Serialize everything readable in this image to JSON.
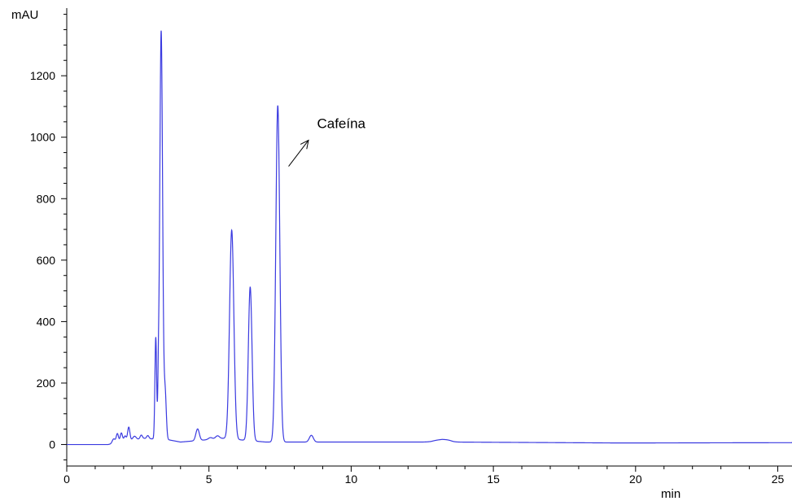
{
  "chart_data": {
    "type": "line",
    "title": "",
    "xlabel": "min",
    "ylabel": "mAU",
    "xlim": [
      0,
      25.5
    ],
    "ylim": [
      -70,
      1420
    ],
    "x_ticks": [
      0,
      5,
      10,
      15,
      20,
      25
    ],
    "x_tick_labels": [
      "0",
      "5",
      "10",
      "15",
      "20",
      "25"
    ],
    "y_ticks": [
      0,
      200,
      400,
      600,
      800,
      1000,
      1200
    ],
    "y_tick_labels": [
      "0",
      "200",
      "400",
      "600",
      "800",
      "1000",
      "1200"
    ],
    "grid": false,
    "legend": "none",
    "series": [
      {
        "color": "#3a3ae0",
        "baseline_points": [
          [
            0,
            0
          ],
          [
            1.45,
            0
          ],
          [
            2.7,
            20
          ],
          [
            3.6,
            15
          ],
          [
            4.0,
            8
          ],
          [
            5.5,
            20
          ],
          [
            7.0,
            8
          ],
          [
            10,
            8
          ],
          [
            12.8,
            8
          ],
          [
            13.2,
            12
          ],
          [
            13.6,
            8
          ],
          [
            19.5,
            5
          ],
          [
            25.5,
            6
          ]
        ],
        "peaks": [
          {
            "rt": 1.65,
            "height": 15,
            "width": 0.05
          },
          {
            "rt": 1.78,
            "height": 30,
            "width": 0.04
          },
          {
            "rt": 1.92,
            "height": 30,
            "width": 0.04
          },
          {
            "rt": 2.05,
            "height": 18,
            "width": 0.04
          },
          {
            "rt": 2.18,
            "height": 45,
            "width": 0.04
          },
          {
            "rt": 2.38,
            "height": 12,
            "width": 0.06
          },
          {
            "rt": 2.62,
            "height": 12,
            "width": 0.04
          },
          {
            "rt": 2.85,
            "height": 10,
            "width": 0.04
          },
          {
            "rt": 3.13,
            "height": 330,
            "width": 0.03
          },
          {
            "rt": 3.22,
            "height": 120,
            "width": 0.02
          },
          {
            "rt": 3.32,
            "height": 1330,
            "width": 0.05
          },
          {
            "rt": 3.46,
            "height": 150,
            "width": 0.04
          },
          {
            "rt": 4.6,
            "height": 38,
            "width": 0.06
          },
          {
            "rt": 5.05,
            "height": 6,
            "width": 0.07
          },
          {
            "rt": 5.3,
            "height": 10,
            "width": 0.07
          },
          {
            "rt": 5.8,
            "height": 680,
            "width": 0.075
          },
          {
            "rt": 6.45,
            "height": 500,
            "width": 0.065
          },
          {
            "rt": 7.42,
            "height": 1095,
            "width": 0.07
          },
          {
            "rt": 8.6,
            "height": 22,
            "width": 0.07
          },
          {
            "rt": 13.05,
            "height": 4,
            "width": 0.2
          },
          {
            "rt": 13.4,
            "height": 4,
            "width": 0.15
          }
        ]
      }
    ],
    "annotations": [
      {
        "text": "Cafeína",
        "x": 8.8,
        "y": 1030,
        "arrow_from": [
          7.8,
          905
        ],
        "arrow_to": [
          8.5,
          990
        ]
      }
    ]
  }
}
